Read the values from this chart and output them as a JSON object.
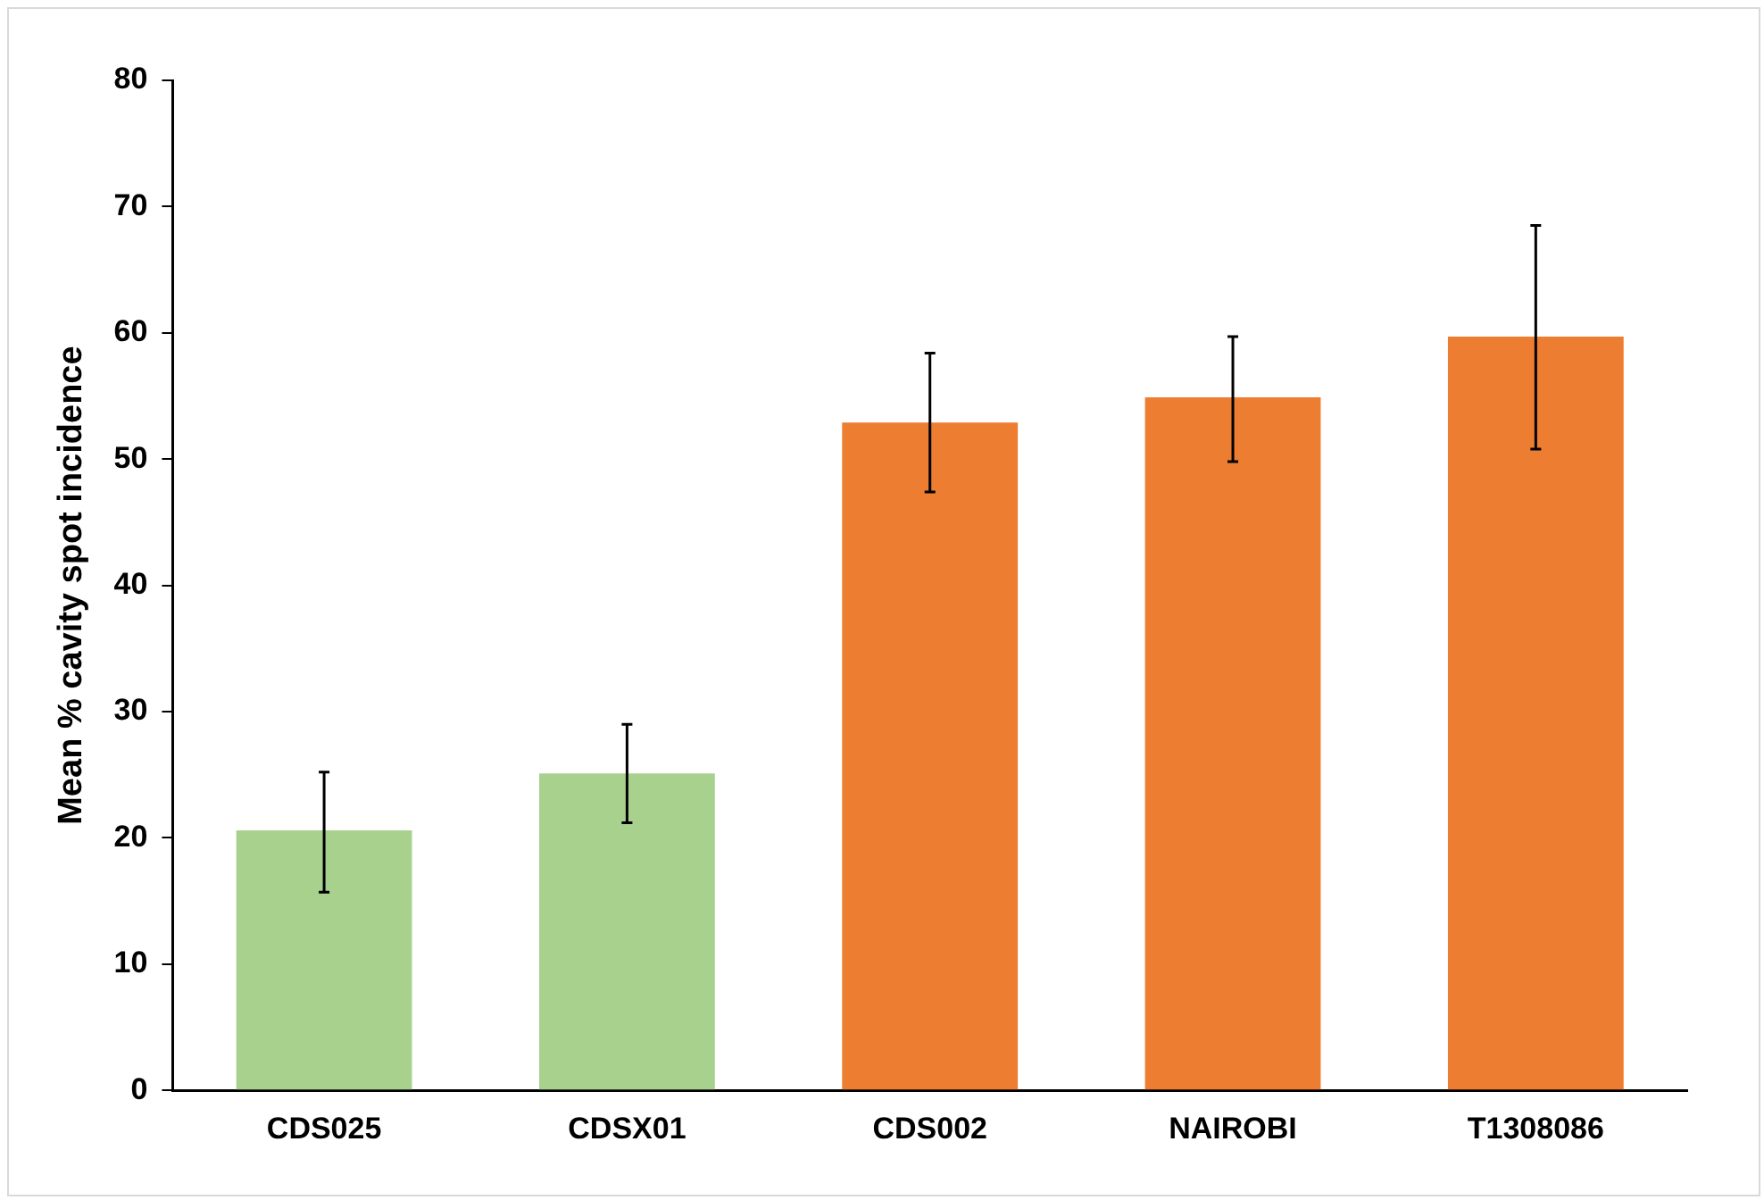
{
  "chart_data": {
    "type": "bar",
    "ylabel": "Mean % cavity spot incidence",
    "categories": [
      "CDS025",
      "CDSX01",
      "CDS002",
      "NAIROBI",
      "T1308086"
    ],
    "values": [
      20.6,
      25.1,
      52.9,
      54.9,
      59.7
    ],
    "colors": [
      "#a9d18e",
      "#a9d18e",
      "#ed7d31",
      "#ed7d31",
      "#ed7d31"
    ],
    "errors": [
      [
        15.7,
        25.2
      ],
      [
        21.2,
        29
      ],
      [
        47.4,
        58.4
      ],
      [
        49.8,
        59.7
      ],
      [
        50.8,
        68.5
      ]
    ],
    "ylim": [
      0,
      80
    ],
    "yticks": [
      0,
      10,
      20,
      30,
      40,
      50,
      60,
      70,
      80
    ],
    "grid": false,
    "legend": false
  }
}
